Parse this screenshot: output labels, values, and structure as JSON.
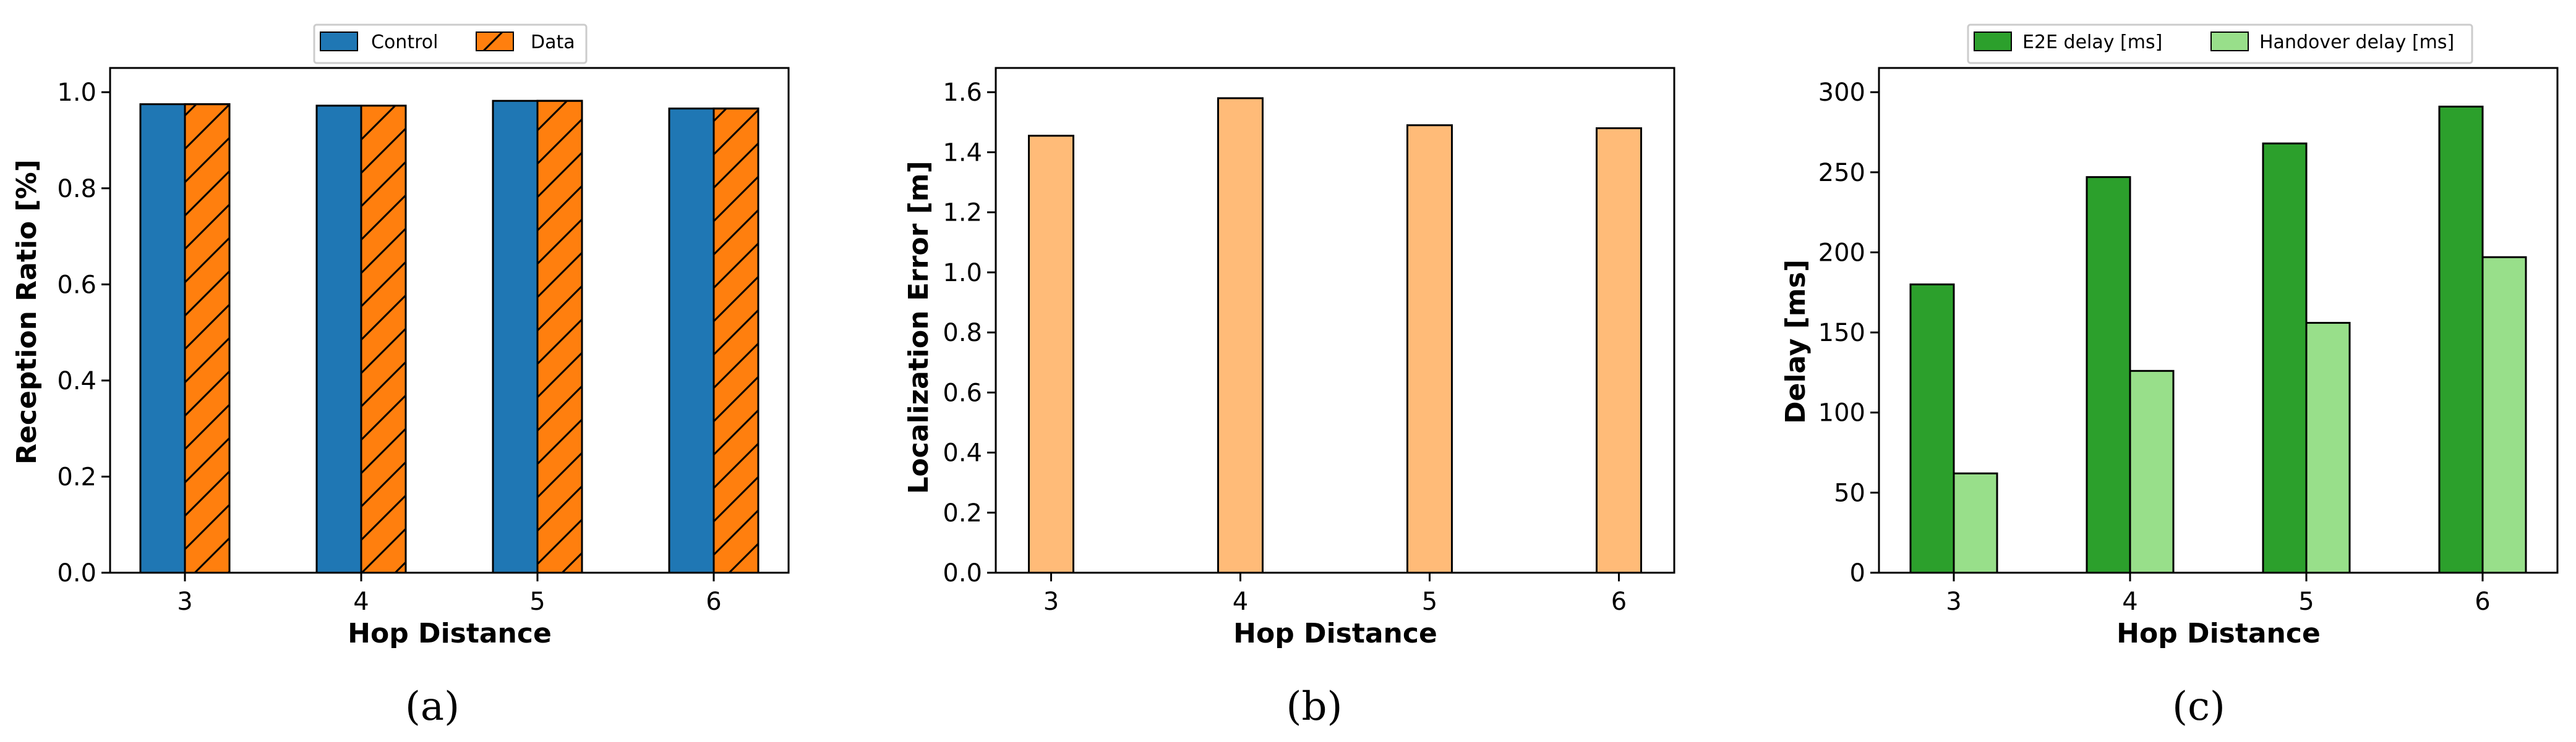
{
  "chart_data": [
    {
      "type": "bar",
      "categories": [
        "3",
        "4",
        "5",
        "6"
      ],
      "series": [
        {
          "name": "Control",
          "values": [
            0.975,
            0.972,
            0.982,
            0.966
          ],
          "color": "#1f77b4",
          "hatch": false
        },
        {
          "name": "Data",
          "values": [
            0.975,
            0.972,
            0.982,
            0.966
          ],
          "color": "#ff7f0e",
          "hatch": true
        }
      ],
      "yticks": [
        "0.0",
        "0.2",
        "0.4",
        "0.6",
        "0.8",
        "1.0"
      ],
      "ylim": [
        0,
        1.0
      ],
      "xlabel": "Hop Distance",
      "ylabel": "Reception Ratio [%]",
      "legend": "top-center",
      "grid": false,
      "caption": "(a)"
    },
    {
      "type": "bar",
      "categories": [
        "3",
        "4",
        "5",
        "6"
      ],
      "series": [
        {
          "values": [
            1.455,
            1.58,
            1.49,
            1.48
          ],
          "color": "#ffbb78",
          "hatch": false
        }
      ],
      "yticks": [
        "0.0",
        "0.2",
        "0.4",
        "0.6",
        "0.8",
        "1.0",
        "1.2",
        "1.4",
        "1.6"
      ],
      "ylim": [
        0,
        1.6
      ],
      "xlabel": "Hop Distance",
      "ylabel": "Localization Error [m]",
      "grid": false,
      "caption": "(b)"
    },
    {
      "type": "bar",
      "categories": [
        "3",
        "4",
        "5",
        "6"
      ],
      "series": [
        {
          "name": "E2E delay [ms]",
          "values": [
            180,
            247,
            268,
            291
          ],
          "color": "#2ca02c",
          "hatch": false
        },
        {
          "name": "Handover delay [ms]",
          "values": [
            62,
            126,
            156,
            197
          ],
          "color": "#98df8a",
          "hatch": false
        }
      ],
      "yticks": [
        "0",
        "50",
        "100",
        "150",
        "200",
        "250",
        "300"
      ],
      "ylim": [
        0,
        300
      ],
      "xlabel": "Hop Distance",
      "ylabel": "Delay [ms]",
      "legend": "top-center",
      "grid": false,
      "caption": "(c)"
    }
  ]
}
